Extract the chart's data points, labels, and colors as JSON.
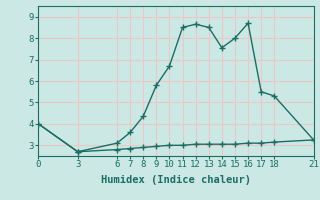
{
  "title": "",
  "xlabel": "Humidex (Indice chaleur)",
  "background_color": "#cce8e4",
  "grid_color": "#e8c8c8",
  "line_color": "#1a6e64",
  "marker_color": "#1a6e64",
  "x_upper": [
    0,
    3,
    6,
    7,
    8,
    9,
    10,
    11,
    12,
    13,
    14,
    15,
    16,
    17,
    18,
    21
  ],
  "y_upper": [
    4.0,
    2.7,
    3.1,
    3.6,
    4.35,
    5.8,
    6.7,
    8.5,
    8.65,
    8.5,
    7.55,
    8.0,
    8.7,
    5.5,
    5.3,
    3.25
  ],
  "x_lower": [
    0,
    3,
    6,
    7,
    8,
    9,
    10,
    11,
    12,
    13,
    14,
    15,
    16,
    17,
    18,
    21
  ],
  "y_lower": [
    4.0,
    2.7,
    2.8,
    2.85,
    2.9,
    2.95,
    3.0,
    3.0,
    3.05,
    3.05,
    3.05,
    3.05,
    3.1,
    3.1,
    3.15,
    3.25
  ],
  "xlim": [
    0,
    21
  ],
  "ylim": [
    2.5,
    9.5
  ],
  "xticks": [
    0,
    3,
    6,
    7,
    8,
    9,
    10,
    11,
    12,
    13,
    14,
    15,
    16,
    17,
    18,
    21
  ],
  "yticks": [
    3,
    4,
    5,
    6,
    7,
    8,
    9
  ],
  "tick_fontsize": 6.5,
  "label_fontsize": 7.5
}
